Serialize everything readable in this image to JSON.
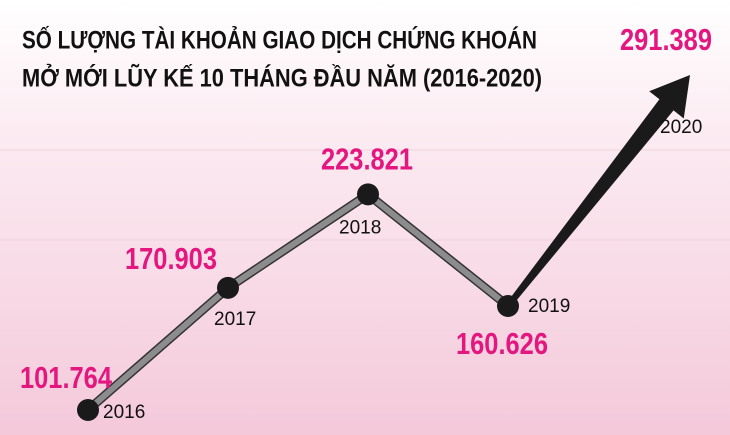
{
  "chart_data": {
    "type": "line",
    "title": [
      "SỐ LƯỢNG TÀI KHOẢN GIAO DỊCH CHỨNG KHOÁN",
      "MỞ MỚI LŨY KẾ 10 THÁNG ĐẦU NĂM (2016-2020)"
    ],
    "categories": [
      "2016",
      "2017",
      "2018",
      "2019",
      "2020"
    ],
    "values": [
      101764,
      170903,
      223821,
      160626,
      291389
    ],
    "value_labels": [
      "101.764",
      "170.903",
      "223.821",
      "160.626",
      "291.389"
    ],
    "color": "#8c8c8c",
    "label_color": "#e3177f"
  }
}
